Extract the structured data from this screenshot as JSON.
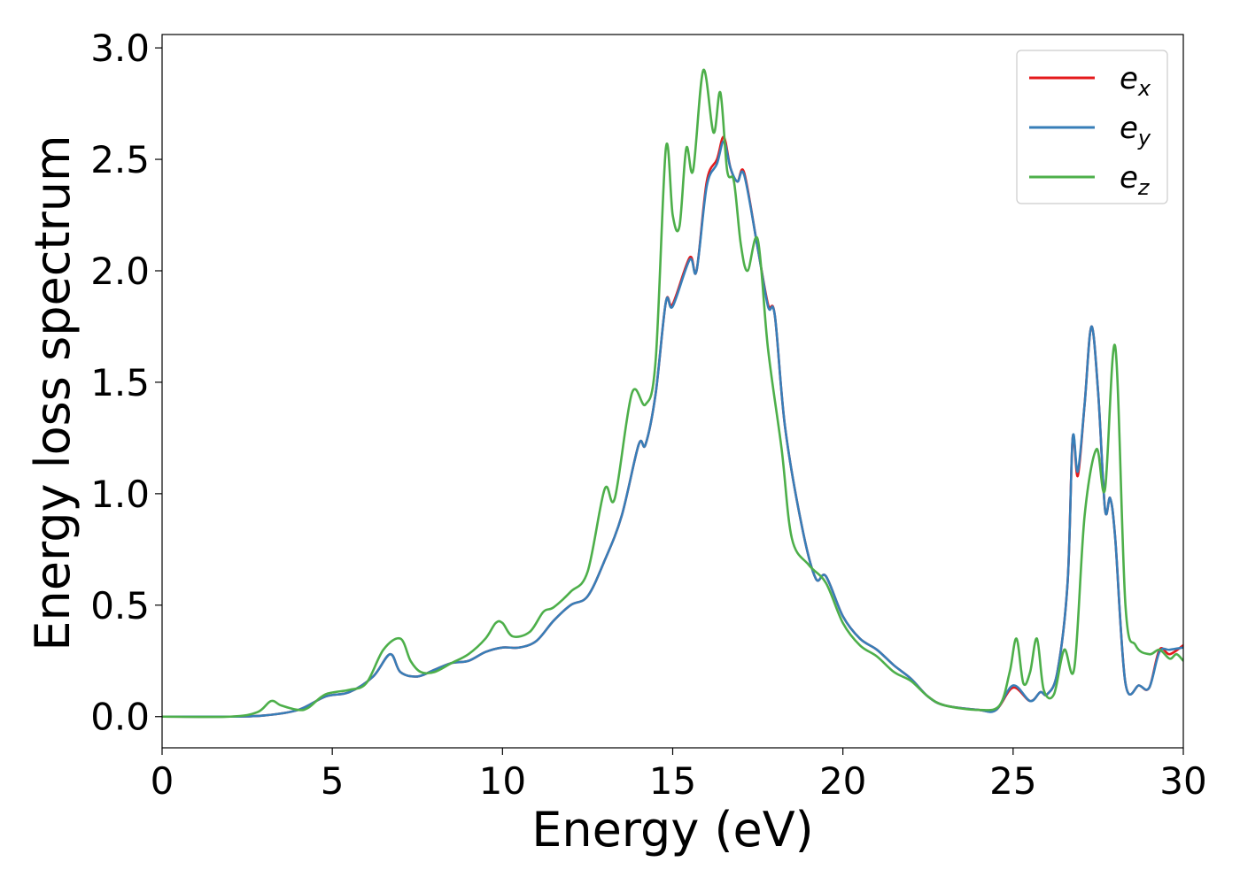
{
  "chart_data": {
    "type": "line",
    "xlabel": "Energy (eV)",
    "ylabel": "Energy loss spectrum",
    "xlim": [
      0,
      30
    ],
    "ylim": [
      -0.14,
      3.06
    ],
    "xticks": [
      "0",
      "5",
      "10",
      "15",
      "20",
      "25",
      "30"
    ],
    "yticks": [
      "0.0",
      "0.5",
      "1.0",
      "1.5",
      "2.0",
      "2.5",
      "3.0"
    ],
    "grid": false,
    "legend_position": "top-right",
    "series": [
      {
        "name": "e_x",
        "base": "e",
        "sub": "x",
        "color": "#e41a1c",
        "points": [
          [
            0,
            0
          ],
          [
            2,
            0
          ],
          [
            3,
            0.005
          ],
          [
            4,
            0.03
          ],
          [
            4.8,
            0.09
          ],
          [
            5.5,
            0.11
          ],
          [
            6.2,
            0.18
          ],
          [
            6.7,
            0.28
          ],
          [
            7,
            0.2
          ],
          [
            7.5,
            0.18
          ],
          [
            8,
            0.21
          ],
          [
            8.5,
            0.24
          ],
          [
            9,
            0.25
          ],
          [
            9.5,
            0.29
          ],
          [
            10,
            0.31
          ],
          [
            10.5,
            0.31
          ],
          [
            11,
            0.34
          ],
          [
            11.5,
            0.43
          ],
          [
            12,
            0.5
          ],
          [
            12.5,
            0.54
          ],
          [
            13,
            0.7
          ],
          [
            13.5,
            0.9
          ],
          [
            14,
            1.22
          ],
          [
            14.2,
            1.22
          ],
          [
            14.5,
            1.45
          ],
          [
            14.8,
            1.86
          ],
          [
            15,
            1.85
          ],
          [
            15.5,
            2.06
          ],
          [
            15.7,
            2.0
          ],
          [
            16,
            2.4
          ],
          [
            16.3,
            2.5
          ],
          [
            16.5,
            2.6
          ],
          [
            16.7,
            2.46
          ],
          [
            16.9,
            2.4
          ],
          [
            17.1,
            2.44
          ],
          [
            17.5,
            2.1
          ],
          [
            17.8,
            1.85
          ],
          [
            18,
            1.8
          ],
          [
            18.3,
            1.3
          ],
          [
            18.8,
            0.85
          ],
          [
            19.2,
            0.62
          ],
          [
            19.5,
            0.63
          ],
          [
            20,
            0.45
          ],
          [
            20.5,
            0.35
          ],
          [
            21,
            0.3
          ],
          [
            21.5,
            0.23
          ],
          [
            22,
            0.17
          ],
          [
            22.5,
            0.09
          ],
          [
            23,
            0.05
          ],
          [
            24,
            0.03
          ],
          [
            24.5,
            0.03
          ],
          [
            25,
            0.13
          ],
          [
            25.5,
            0.07
          ],
          [
            25.8,
            0.11
          ],
          [
            26,
            0.1
          ],
          [
            26.3,
            0.2
          ],
          [
            26.6,
            0.6
          ],
          [
            26.75,
            1.25
          ],
          [
            26.9,
            1.08
          ],
          [
            27.1,
            1.4
          ],
          [
            27.3,
            1.75
          ],
          [
            27.5,
            1.45
          ],
          [
            27.7,
            0.93
          ],
          [
            27.85,
            0.98
          ],
          [
            28,
            0.8
          ],
          [
            28.3,
            0.15
          ],
          [
            28.7,
            0.14
          ],
          [
            29,
            0.13
          ],
          [
            29.3,
            0.3
          ],
          [
            29.6,
            0.28
          ],
          [
            30,
            0.32
          ]
        ]
      },
      {
        "name": "e_y",
        "base": "e",
        "sub": "y",
        "color": "#377eb8",
        "points": [
          [
            0,
            0
          ],
          [
            2,
            0
          ],
          [
            3,
            0.005
          ],
          [
            4,
            0.03
          ],
          [
            4.8,
            0.09
          ],
          [
            5.5,
            0.11
          ],
          [
            6.2,
            0.18
          ],
          [
            6.7,
            0.28
          ],
          [
            7,
            0.2
          ],
          [
            7.5,
            0.18
          ],
          [
            8,
            0.21
          ],
          [
            8.5,
            0.24
          ],
          [
            9,
            0.25
          ],
          [
            9.5,
            0.29
          ],
          [
            10,
            0.31
          ],
          [
            10.5,
            0.31
          ],
          [
            11,
            0.34
          ],
          [
            11.5,
            0.43
          ],
          [
            12,
            0.5
          ],
          [
            12.5,
            0.54
          ],
          [
            13,
            0.7
          ],
          [
            13.5,
            0.9
          ],
          [
            14,
            1.22
          ],
          [
            14.2,
            1.22
          ],
          [
            14.5,
            1.45
          ],
          [
            14.8,
            1.86
          ],
          [
            15,
            1.84
          ],
          [
            15.5,
            2.05
          ],
          [
            15.7,
            2.0
          ],
          [
            16,
            2.38
          ],
          [
            16.3,
            2.48
          ],
          [
            16.5,
            2.58
          ],
          [
            16.7,
            2.46
          ],
          [
            16.9,
            2.4
          ],
          [
            17.1,
            2.43
          ],
          [
            17.5,
            2.1
          ],
          [
            17.8,
            1.84
          ],
          [
            18,
            1.8
          ],
          [
            18.3,
            1.3
          ],
          [
            18.8,
            0.85
          ],
          [
            19.2,
            0.62
          ],
          [
            19.5,
            0.63
          ],
          [
            20,
            0.45
          ],
          [
            20.5,
            0.35
          ],
          [
            21,
            0.3
          ],
          [
            21.5,
            0.23
          ],
          [
            22,
            0.17
          ],
          [
            22.5,
            0.09
          ],
          [
            23,
            0.05
          ],
          [
            24,
            0.03
          ],
          [
            24.5,
            0.03
          ],
          [
            25,
            0.14
          ],
          [
            25.5,
            0.07
          ],
          [
            25.8,
            0.11
          ],
          [
            26,
            0.1
          ],
          [
            26.3,
            0.2
          ],
          [
            26.6,
            0.6
          ],
          [
            26.75,
            1.25
          ],
          [
            26.9,
            1.1
          ],
          [
            27.1,
            1.4
          ],
          [
            27.3,
            1.75
          ],
          [
            27.5,
            1.45
          ],
          [
            27.7,
            0.93
          ],
          [
            27.85,
            0.98
          ],
          [
            28,
            0.8
          ],
          [
            28.3,
            0.15
          ],
          [
            28.7,
            0.14
          ],
          [
            29,
            0.13
          ],
          [
            29.3,
            0.29
          ],
          [
            29.6,
            0.3
          ],
          [
            30,
            0.31
          ]
        ]
      },
      {
        "name": "e_z",
        "base": "e",
        "sub": "z",
        "color": "#4daf4a",
        "points": [
          [
            0,
            0
          ],
          [
            2,
            0
          ],
          [
            2.8,
            0.02
          ],
          [
            3.2,
            0.07
          ],
          [
            3.5,
            0.05
          ],
          [
            4,
            0.03
          ],
          [
            4.3,
            0.04
          ],
          [
            4.8,
            0.1
          ],
          [
            5.5,
            0.12
          ],
          [
            6,
            0.15
          ],
          [
            6.5,
            0.3
          ],
          [
            7,
            0.35
          ],
          [
            7.3,
            0.25
          ],
          [
            7.6,
            0.2
          ],
          [
            8,
            0.2
          ],
          [
            8.5,
            0.24
          ],
          [
            9,
            0.28
          ],
          [
            9.5,
            0.35
          ],
          [
            9.8,
            0.42
          ],
          [
            10,
            0.42
          ],
          [
            10.3,
            0.36
          ],
          [
            10.8,
            0.38
          ],
          [
            11.2,
            0.47
          ],
          [
            11.5,
            0.49
          ],
          [
            12,
            0.56
          ],
          [
            12.5,
            0.65
          ],
          [
            13,
            1.02
          ],
          [
            13.3,
            0.98
          ],
          [
            13.8,
            1.45
          ],
          [
            14.2,
            1.4
          ],
          [
            14.5,
            1.6
          ],
          [
            14.8,
            2.55
          ],
          [
            15,
            2.25
          ],
          [
            15.2,
            2.2
          ],
          [
            15.4,
            2.55
          ],
          [
            15.6,
            2.45
          ],
          [
            15.9,
            2.9
          ],
          [
            16.2,
            2.62
          ],
          [
            16.4,
            2.8
          ],
          [
            16.6,
            2.45
          ],
          [
            16.8,
            2.4
          ],
          [
            17,
            2.12
          ],
          [
            17.2,
            2.0
          ],
          [
            17.5,
            2.14
          ],
          [
            17.8,
            1.65
          ],
          [
            18.2,
            1.2
          ],
          [
            18.5,
            0.8
          ],
          [
            19,
            0.68
          ],
          [
            19.5,
            0.6
          ],
          [
            20,
            0.42
          ],
          [
            20.5,
            0.32
          ],
          [
            21,
            0.27
          ],
          [
            21.5,
            0.2
          ],
          [
            22,
            0.16
          ],
          [
            22.5,
            0.09
          ],
          [
            23,
            0.05
          ],
          [
            24,
            0.03
          ],
          [
            24.6,
            0.05
          ],
          [
            24.9,
            0.2
          ],
          [
            25.1,
            0.35
          ],
          [
            25.3,
            0.15
          ],
          [
            25.5,
            0.2
          ],
          [
            25.7,
            0.35
          ],
          [
            25.9,
            0.12
          ],
          [
            26.2,
            0.1
          ],
          [
            26.5,
            0.3
          ],
          [
            26.8,
            0.22
          ],
          [
            27.1,
            0.9
          ],
          [
            27.45,
            1.2
          ],
          [
            27.7,
            1.02
          ],
          [
            28,
            1.66
          ],
          [
            28.3,
            0.5
          ],
          [
            28.6,
            0.32
          ],
          [
            29,
            0.28
          ],
          [
            29.3,
            0.3
          ],
          [
            29.6,
            0.26
          ],
          [
            29.8,
            0.28
          ],
          [
            30,
            0.25
          ]
        ]
      }
    ]
  }
}
